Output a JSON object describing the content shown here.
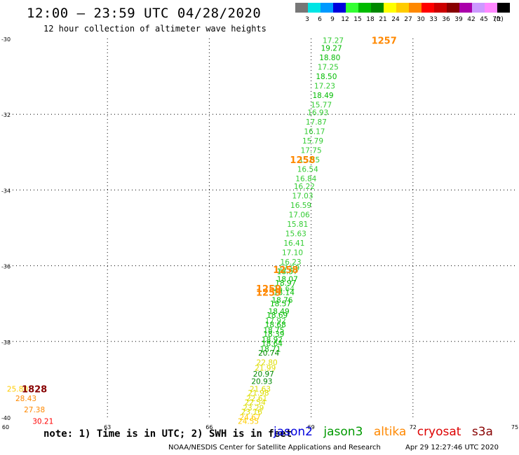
{
  "header": {
    "title": "12:00 – 23:59 UTC 04/28/2020",
    "subtitle": "12 hour collection of altimeter wave heights"
  },
  "color_scale": {
    "unit": "(ft)",
    "bins": [
      {
        "label": "3",
        "color": "#777777"
      },
      {
        "label": "6",
        "color": "#00e5e5"
      },
      {
        "label": "9",
        "color": "#0099ff"
      },
      {
        "label": "12",
        "color": "#0000dd"
      },
      {
        "label": "15",
        "color": "#33ff33"
      },
      {
        "label": "18",
        "color": "#00bb00"
      },
      {
        "label": "21",
        "color": "#008800"
      },
      {
        "label": "24",
        "color": "#ffff00"
      },
      {
        "label": "27",
        "color": "#ffcc00"
      },
      {
        "label": "30",
        "color": "#ff8800"
      },
      {
        "label": "33",
        "color": "#ff0000"
      },
      {
        "label": "36",
        "color": "#cc0000"
      },
      {
        "label": "39",
        "color": "#880000"
      },
      {
        "label": "42",
        "color": "#aa00aa"
      },
      {
        "label": "45",
        "color": "#cc99ff"
      },
      {
        "label": "70",
        "color": "#ff88ff"
      },
      {
        "label": "",
        "color": "#000000"
      }
    ]
  },
  "chart_data": {
    "type": "map",
    "x_axis": {
      "ticks": [
        60,
        63,
        66,
        69,
        72,
        75
      ],
      "range": [
        60,
        75
      ]
    },
    "y_axis": {
      "ticks": [
        -30,
        -32,
        -34,
        -36,
        -38,
        -40
      ],
      "range": [
        -40,
        -30
      ]
    },
    "grid": "dotted",
    "time_labels": [
      {
        "text": "1257",
        "lon": 71.15,
        "lat": -30.05,
        "color": "#ff8800"
      },
      {
        "text": "1258",
        "lon": 68.75,
        "lat": -33.2,
        "color": "#ff8800"
      },
      {
        "text": "1258",
        "lon": 68.25,
        "lat": -36.1,
        "color": "#ff8800"
      },
      {
        "text": "1259",
        "lon": 67.75,
        "lat": -36.6,
        "color": "#ff8800"
      },
      {
        "text": "1259",
        "lon": 67.75,
        "lat": -36.7,
        "color": "#ff8800"
      },
      {
        "text": "1828",
        "lon": 60.85,
        "lat": -39.25,
        "color": "#880000"
      }
    ],
    "points": [
      {
        "v": "17.27",
        "lon": 69.65,
        "lat": -30.05,
        "color": "#33cc33"
      },
      {
        "v": "19.27",
        "lon": 69.6,
        "lat": -30.25,
        "color": "#00bb00"
      },
      {
        "v": "18.80",
        "lon": 69.55,
        "lat": -30.5,
        "color": "#00bb00"
      },
      {
        "v": "17.25",
        "lon": 69.5,
        "lat": -30.75,
        "color": "#33cc33"
      },
      {
        "v": "18.50",
        "lon": 69.45,
        "lat": -31.0,
        "color": "#00bb00"
      },
      {
        "v": "17.23",
        "lon": 69.4,
        "lat": -31.25,
        "color": "#33cc33"
      },
      {
        "v": "18.49",
        "lon": 69.35,
        "lat": -31.5,
        "color": "#00bb00"
      },
      {
        "v": "15.77",
        "lon": 69.3,
        "lat": -31.75,
        "color": "#33cc33"
      },
      {
        "v": "16.93",
        "lon": 69.2,
        "lat": -31.95,
        "color": "#33cc33"
      },
      {
        "v": "17.87",
        "lon": 69.15,
        "lat": -32.2,
        "color": "#33cc33"
      },
      {
        "v": "16.17",
        "lon": 69.1,
        "lat": -32.45,
        "color": "#33cc33"
      },
      {
        "v": "15.79",
        "lon": 69.05,
        "lat": -32.7,
        "color": "#33cc33"
      },
      {
        "v": "17.75",
        "lon": 69.0,
        "lat": -32.95,
        "color": "#33cc33"
      },
      {
        "v": "15.55",
        "lon": 68.95,
        "lat": -33.2,
        "color": "#33cc33"
      },
      {
        "v": "16.54",
        "lon": 68.9,
        "lat": -33.45,
        "color": "#33cc33"
      },
      {
        "v": "16.84",
        "lon": 68.85,
        "lat": -33.7,
        "color": "#33cc33"
      },
      {
        "v": "16.22",
        "lon": 68.8,
        "lat": -33.9,
        "color": "#33cc33"
      },
      {
        "v": "17.03",
        "lon": 68.75,
        "lat": -34.15,
        "color": "#33cc33"
      },
      {
        "v": "16.59",
        "lon": 68.7,
        "lat": -34.4,
        "color": "#33cc33"
      },
      {
        "v": "17.06",
        "lon": 68.65,
        "lat": -34.65,
        "color": "#33cc33"
      },
      {
        "v": "15.81",
        "lon": 68.6,
        "lat": -34.9,
        "color": "#33cc33"
      },
      {
        "v": "15.63",
        "lon": 68.55,
        "lat": -35.15,
        "color": "#33cc33"
      },
      {
        "v": "16.41",
        "lon": 68.5,
        "lat": -35.4,
        "color": "#33cc33"
      },
      {
        "v": "17.10",
        "lon": 68.45,
        "lat": -35.65,
        "color": "#33cc33"
      },
      {
        "v": "16.23",
        "lon": 68.4,
        "lat": -35.9,
        "color": "#33cc33"
      },
      {
        "v": "17.99",
        "lon": 68.35,
        "lat": -36.05,
        "color": "#33cc33"
      },
      {
        "v": "18.57",
        "lon": 68.3,
        "lat": -36.15,
        "color": "#00bb00"
      },
      {
        "v": "18.07",
        "lon": 68.3,
        "lat": -36.35,
        "color": "#00bb00"
      },
      {
        "v": "18.97",
        "lon": 68.25,
        "lat": -36.45,
        "color": "#00bb00"
      },
      {
        "v": "15.64",
        "lon": 68.2,
        "lat": -36.6,
        "color": "#33cc33"
      },
      {
        "v": "18.14",
        "lon": 68.2,
        "lat": -36.7,
        "color": "#00bb00"
      },
      {
        "v": "18.76",
        "lon": 68.15,
        "lat": -36.9,
        "color": "#00bb00"
      },
      {
        "v": "18.57",
        "lon": 68.1,
        "lat": -37.0,
        "color": "#00bb00"
      },
      {
        "v": "18.49",
        "lon": 68.05,
        "lat": -37.2,
        "color": "#00bb00"
      },
      {
        "v": "18.69",
        "lon": 68.0,
        "lat": -37.3,
        "color": "#00bb00"
      },
      {
        "v": "17.92",
        "lon": 67.95,
        "lat": -37.45,
        "color": "#33cc33"
      },
      {
        "v": "18.68",
        "lon": 67.95,
        "lat": -37.55,
        "color": "#00bb00"
      },
      {
        "v": "18.75",
        "lon": 67.9,
        "lat": -37.7,
        "color": "#00bb00"
      },
      {
        "v": "18.39",
        "lon": 67.9,
        "lat": -37.8,
        "color": "#00bb00"
      },
      {
        "v": "18.92",
        "lon": 67.85,
        "lat": -37.95,
        "color": "#00bb00"
      },
      {
        "v": "18.64",
        "lon": 67.85,
        "lat": -38.05,
        "color": "#00bb00"
      },
      {
        "v": "18.71",
        "lon": 67.8,
        "lat": -38.2,
        "color": "#00bb00"
      },
      {
        "v": "20.74",
        "lon": 67.75,
        "lat": -38.3,
        "color": "#008800"
      },
      {
        "v": "22.80",
        "lon": 67.7,
        "lat": -38.55,
        "color": "#dddd00"
      },
      {
        "v": "21.99",
        "lon": 67.65,
        "lat": -38.7,
        "color": "#dddd00"
      },
      {
        "v": "20.97",
        "lon": 67.6,
        "lat": -38.85,
        "color": "#008800"
      },
      {
        "v": "20.93",
        "lon": 67.55,
        "lat": -39.05,
        "color": "#008800"
      },
      {
        "v": "21.63",
        "lon": 67.5,
        "lat": -39.25,
        "color": "#dddd00"
      },
      {
        "v": "21.98",
        "lon": 67.45,
        "lat": -39.35,
        "color": "#dddd00"
      },
      {
        "v": "22.61",
        "lon": 67.4,
        "lat": -39.5,
        "color": "#dddd00"
      },
      {
        "v": "22.54",
        "lon": 67.35,
        "lat": -39.6,
        "color": "#dddd00"
      },
      {
        "v": "23.29",
        "lon": 67.3,
        "lat": -39.75,
        "color": "#dddd00"
      },
      {
        "v": "23.16",
        "lon": 67.25,
        "lat": -39.85,
        "color": "#dddd00"
      },
      {
        "v": "24.67",
        "lon": 67.2,
        "lat": -40.0,
        "color": "#ffcc00"
      },
      {
        "v": "24.55",
        "lon": 67.15,
        "lat": -40.1,
        "color": "#ffcc00"
      },
      {
        "v": "25.80",
        "lon": 60.35,
        "lat": -39.25,
        "color": "#ffcc00"
      },
      {
        "v": "28.43",
        "lon": 60.6,
        "lat": -39.5,
        "color": "#ff8800"
      },
      {
        "v": "27.38",
        "lon": 60.85,
        "lat": -39.8,
        "color": "#ff8800"
      },
      {
        "v": "30.21",
        "lon": 61.1,
        "lat": -40.1,
        "color": "#ff0000"
      }
    ]
  },
  "note": "note: 1) Time is in UTC; 2) SWH is in feet",
  "legend": [
    {
      "label": "jason2",
      "color": "#0000dd"
    },
    {
      "label": "jason3",
      "color": "#009900"
    },
    {
      "label": "altika",
      "color": "#ff8800"
    },
    {
      "label": "cryosat",
      "color": "#dd0000"
    },
    {
      "label": "s3a",
      "color": "#880000"
    }
  ],
  "footer": {
    "credit": "NOAA/NESDIS Center for Satellite Applications and Research",
    "timestamp": "Apr 29 12:27:46 UTC 2020"
  }
}
